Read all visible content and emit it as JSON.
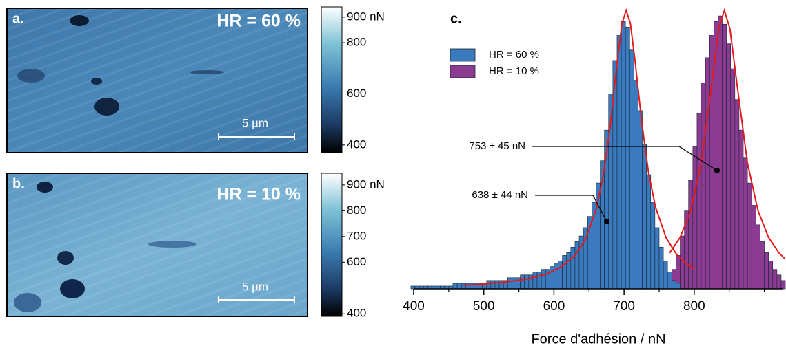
{
  "images": [
    {
      "label": "a.",
      "title": "HR = 60 %",
      "scalebar": "5 µm",
      "colorbar": {
        "clim": [
          370,
          940
        ],
        "ticks": [
          {
            "value": 900,
            "label": "900 nN"
          },
          800,
          600,
          400
        ]
      }
    },
    {
      "label": "b.",
      "title": "HR = 10 %",
      "scalebar": "5 µm",
      "colorbar": {
        "clim": [
          390,
          945
        ],
        "ticks": [
          {
            "value": 900,
            "label": "900 nN"
          },
          800,
          700,
          600,
          400
        ]
      }
    }
  ],
  "chart_data": {
    "type": "histogram",
    "label": "c.",
    "xlabel": "Force d'adhésion / nN",
    "xlim": [
      400,
      926
    ],
    "xticks": [
      400,
      500,
      600,
      700,
      800
    ],
    "xminorticks": [
      450,
      550,
      650,
      750,
      850,
      900
    ],
    "ylim": [
      0,
      100
    ],
    "series": [
      {
        "name": "HR = 10 %",
        "color": "#8b3c92",
        "bins": [
          756,
          762,
          768,
          774,
          780,
          786,
          792,
          798,
          804,
          810,
          816,
          822,
          828,
          834,
          840,
          846,
          852,
          858,
          864,
          870,
          876,
          882,
          888,
          894,
          900,
          906,
          912,
          918,
          924,
          930
        ],
        "values": [
          2,
          4,
          7,
          12,
          19,
          28,
          39,
          51,
          63,
          74,
          83,
          91,
          96,
          98,
          95,
          88,
          79,
          68,
          57,
          47,
          38,
          30,
          23,
          17,
          13,
          10,
          7,
          5,
          3
        ]
      },
      {
        "name": "HR = 60 %",
        "color": "#3a7bbf",
        "bins": [
          396,
          402,
          408,
          414,
          420,
          426,
          432,
          438,
          444,
          450,
          456,
          462,
          468,
          474,
          480,
          486,
          492,
          498,
          504,
          510,
          516,
          522,
          528,
          534,
          540,
          546,
          552,
          558,
          564,
          570,
          576,
          582,
          588,
          594,
          600,
          606,
          612,
          618,
          624,
          630,
          636,
          642,
          648,
          654,
          660,
          666,
          672,
          678,
          684,
          690,
          696,
          702,
          708,
          714,
          720,
          726,
          732,
          738,
          744,
          750,
          756,
          762,
          768,
          774,
          780
        ],
        "values": [
          1,
          1,
          1,
          1,
          1,
          1,
          1,
          1,
          1,
          1,
          2,
          2,
          2,
          2,
          2,
          2,
          2,
          2,
          3,
          3,
          3,
          3,
          3,
          4,
          4,
          4,
          5,
          5,
          5,
          6,
          6,
          7,
          7,
          8,
          9,
          10,
          12,
          13,
          15,
          17,
          19,
          22,
          26,
          31,
          38,
          46,
          57,
          70,
          82,
          91,
          96,
          94,
          86,
          75,
          64,
          52,
          41,
          31,
          22,
          15,
          10,
          6,
          3,
          2
        ]
      }
    ],
    "fits": [
      {
        "color": "#e31a1c",
        "x": [
          470,
          500,
          530,
          560,
          590,
          610,
          630,
          645,
          660,
          670,
          680,
          690,
          697,
          703,
          709,
          716,
          725,
          735,
          745,
          760,
          775,
          790,
          800
        ],
        "values": [
          1.3,
          1.7,
          2.4,
          3.4,
          5.4,
          7.8,
          12.0,
          17.8,
          28.3,
          40.2,
          57.9,
          81.2,
          95.3,
          100,
          95.3,
          81.2,
          60.1,
          41.6,
          29.2,
          18.3,
          12.3,
          8.8,
          7.2
        ]
      },
      {
        "color": "#e31a1c",
        "x": [
          765,
          780,
          795,
          810,
          825,
          835,
          843,
          851,
          861,
          876,
          891,
          906,
          921,
          930
        ],
        "values": [
          12.9,
          18.5,
          28.1,
          45.2,
          73.5,
          93.4,
          100,
          93.4,
          73.5,
          45.2,
          28.1,
          18.5,
          12.9,
          10.6
        ]
      }
    ],
    "annotations": [
      {
        "text": "753 ± 45 nN"
      },
      {
        "text": "638 ± 44 nN"
      }
    ]
  }
}
